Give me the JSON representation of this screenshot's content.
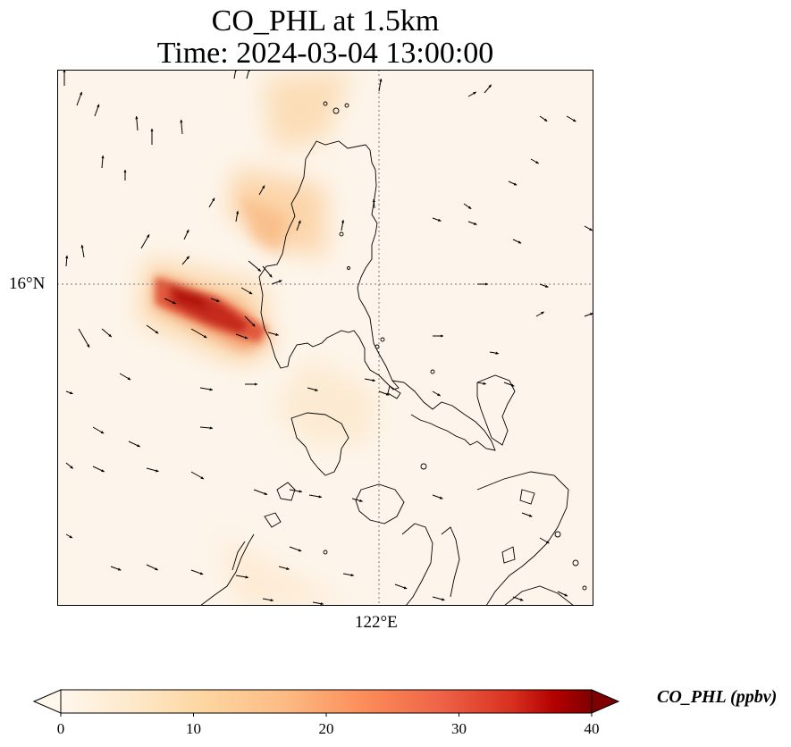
{
  "title": {
    "line1": "CO_PHL at 1.5km",
    "line2": "Time: 2024-03-04 13:00:00"
  },
  "map": {
    "lat_label": "16°N",
    "lon_label": "122°E",
    "gridline_style": "dotted",
    "ocean_color": "#fdf5eb",
    "coastline_color": "#000000"
  },
  "colorbar": {
    "label": "CO_PHL (ppbv)",
    "ticks": [
      "0",
      "10",
      "20",
      "30",
      "40"
    ],
    "vmin": 0,
    "vmax": 40,
    "colormap": "OrRd",
    "extend": "both"
  },
  "plume": {
    "peak_value_ppbv": 36,
    "description_color_peak": "#b7150c"
  }
}
